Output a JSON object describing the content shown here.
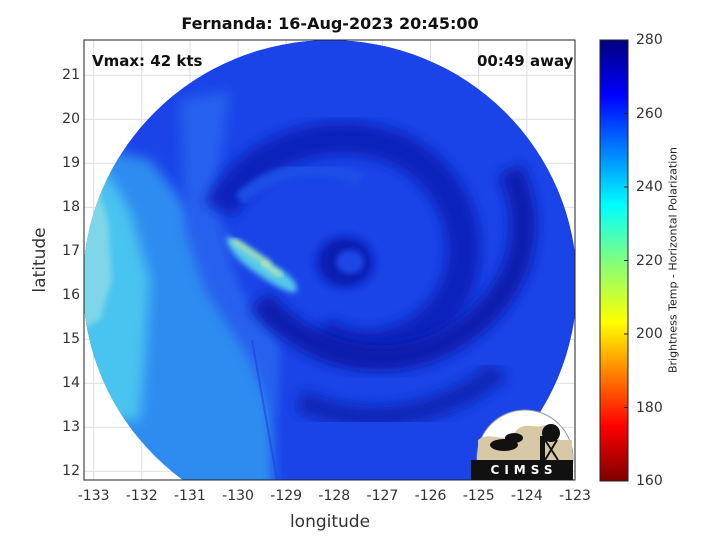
{
  "title": "Fernanda: 16-Aug-2023 20:45:00",
  "annotations": {
    "vmax": "Vmax: 42 kts",
    "away": "00:49 away"
  },
  "logo": {
    "text": "CIMSS"
  },
  "colorbar": {
    "label": "Brightness Temp - Horizontal Polarization",
    "range": [
      160,
      280
    ],
    "ticks": [
      "280",
      "260",
      "240",
      "220",
      "200",
      "180",
      "160"
    ],
    "colormap": "jet"
  },
  "map": {
    "xlabel": "longitude",
    "ylabel": "latitude",
    "xlim": [
      -133.2,
      -123
    ],
    "ylim": [
      11.8,
      21.8
    ],
    "xticks": [
      "-133",
      "-132",
      "-131",
      "-130",
      "-129",
      "-128",
      "-127",
      "-126",
      "-125",
      "-124",
      "-123"
    ],
    "yticks": [
      "21",
      "20",
      "19",
      "18",
      "17",
      "16",
      "15",
      "14",
      "13",
      "12"
    ],
    "grid": true,
    "swath_center": [
      -128.05,
      16.5
    ],
    "storm_center": [
      -128.0,
      16.8
    ]
  }
}
